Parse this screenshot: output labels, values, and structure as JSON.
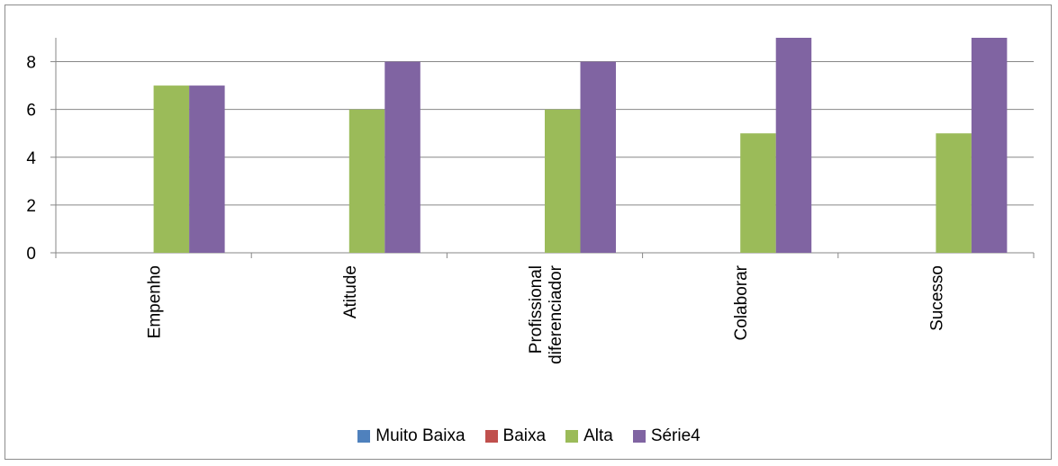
{
  "chart_data": {
    "type": "bar",
    "categories": [
      "Empenho",
      "Atitude",
      "Profissional diferenciador",
      "Colaborar",
      "Sucesso"
    ],
    "category_lines": [
      [
        "Empenho"
      ],
      [
        "Atitude"
      ],
      [
        "Profissional",
        "diferenciador"
      ],
      [
        "Colaborar"
      ],
      [
        "Sucesso"
      ]
    ],
    "series": [
      {
        "name": "Muito Baixa",
        "color": "#4f81bd",
        "values": [
          0,
          0,
          0,
          0,
          0
        ]
      },
      {
        "name": "Baixa",
        "color": "#c0504d",
        "values": [
          0,
          0,
          0,
          0,
          0
        ]
      },
      {
        "name": "Alta",
        "color": "#9bbb59",
        "values": [
          7,
          6,
          6,
          5,
          5
        ]
      },
      {
        "name": "Série4",
        "color": "#8064a2",
        "values": [
          7,
          8,
          8,
          9,
          9
        ]
      }
    ],
    "ylim": [
      0,
      9
    ],
    "yticks": [
      "0",
      "2",
      "4",
      "6",
      "8"
    ],
    "grid": true,
    "legend_position": "bottom"
  }
}
